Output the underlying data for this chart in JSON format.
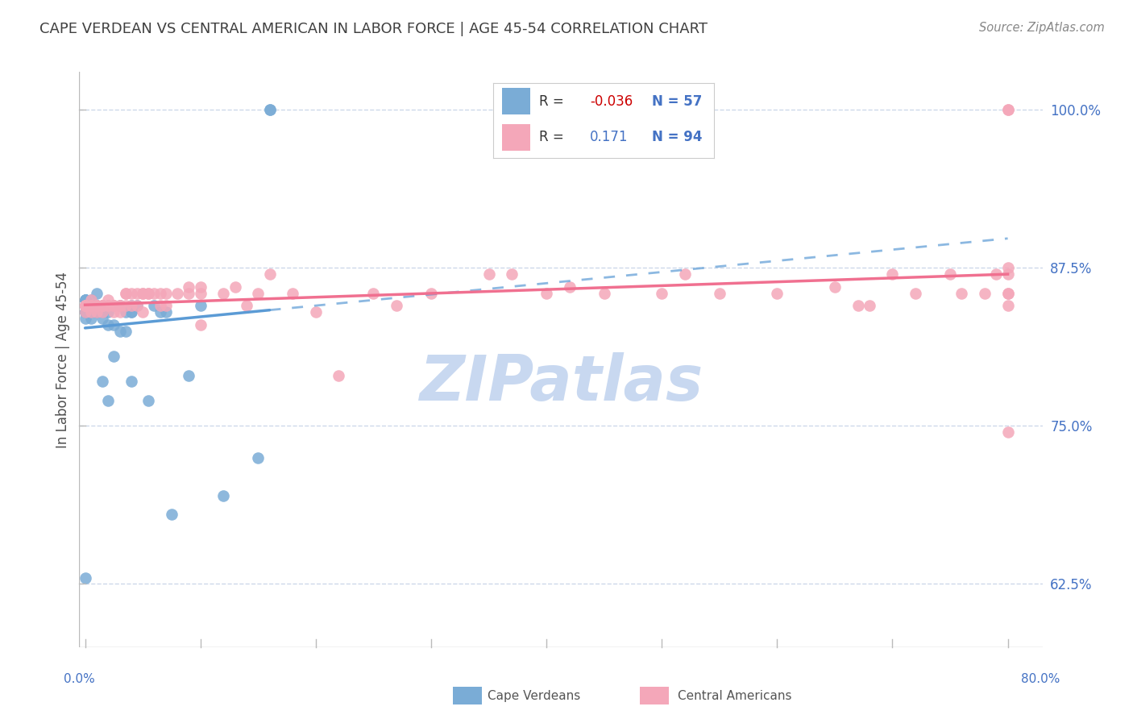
{
  "title": "CAPE VERDEAN VS CENTRAL AMERICAN IN LABOR FORCE | AGE 45-54 CORRELATION CHART",
  "source": "Source: ZipAtlas.com",
  "ylabel": "In Labor Force | Age 45-54",
  "ylim": [
    0.575,
    1.03
  ],
  "xlim": [
    -0.005,
    0.83
  ],
  "yticks": [
    0.625,
    0.75,
    0.875,
    1.0
  ],
  "ytick_labels": [
    "62.5%",
    "75.0%",
    "87.5%",
    "100.0%"
  ],
  "xtick_label_left": "0.0%",
  "xtick_label_right": "80.0%",
  "legend_cv_R": "-0.036",
  "legend_cv_N": "57",
  "legend_ca_R": "0.171",
  "legend_ca_N": "94",
  "blue_color": "#7aacd6",
  "pink_color": "#f4a7b9",
  "blue_line_color": "#5b9bd5",
  "pink_line_color": "#f07090",
  "axis_label_color": "#4472c4",
  "title_color": "#404040",
  "source_color": "#888888",
  "grid_color": "#c8d4e8",
  "watermark_color": "#c8d8f0",
  "cv_x": [
    0.0,
    0.0,
    0.0,
    0.0,
    0.0,
    0.0,
    0.0,
    0.0,
    0.0,
    0.0,
    0.0,
    0.0,
    0.0,
    0.0,
    0.005,
    0.005,
    0.005,
    0.005,
    0.005,
    0.005,
    0.005,
    0.01,
    0.01,
    0.01,
    0.01,
    0.01,
    0.01,
    0.01,
    0.015,
    0.015,
    0.015,
    0.015,
    0.02,
    0.02,
    0.02,
    0.025,
    0.025,
    0.03,
    0.03,
    0.035,
    0.035,
    0.04,
    0.04,
    0.04,
    0.04,
    0.045,
    0.055,
    0.06,
    0.065,
    0.07,
    0.075,
    0.09,
    0.1,
    0.12,
    0.15,
    0.16,
    0.16
  ],
  "cv_y": [
    0.84,
    0.845,
    0.845,
    0.845,
    0.845,
    0.845,
    0.85,
    0.85,
    0.85,
    0.85,
    0.84,
    0.84,
    0.835,
    0.63,
    0.84,
    0.84,
    0.845,
    0.845,
    0.85,
    0.84,
    0.835,
    0.855,
    0.845,
    0.845,
    0.84,
    0.84,
    0.84,
    0.845,
    0.845,
    0.84,
    0.835,
    0.785,
    0.84,
    0.83,
    0.77,
    0.83,
    0.805,
    0.845,
    0.825,
    0.84,
    0.825,
    0.845,
    0.84,
    0.84,
    0.785,
    0.845,
    0.77,
    0.845,
    0.84,
    0.84,
    0.68,
    0.79,
    0.845,
    0.695,
    0.725,
    1.0,
    1.0
  ],
  "ca_x": [
    0.0,
    0.0,
    0.0,
    0.0,
    0.0,
    0.0,
    0.0,
    0.0,
    0.005,
    0.005,
    0.005,
    0.005,
    0.005,
    0.005,
    0.01,
    0.01,
    0.01,
    0.01,
    0.01,
    0.015,
    0.015,
    0.015,
    0.015,
    0.015,
    0.02,
    0.02,
    0.02,
    0.025,
    0.025,
    0.025,
    0.025,
    0.03,
    0.03,
    0.03,
    0.035,
    0.035,
    0.035,
    0.04,
    0.04,
    0.045,
    0.045,
    0.05,
    0.05,
    0.05,
    0.055,
    0.055,
    0.06,
    0.065,
    0.065,
    0.07,
    0.07,
    0.08,
    0.09,
    0.09,
    0.1,
    0.1,
    0.1,
    0.12,
    0.13,
    0.14,
    0.15,
    0.16,
    0.18,
    0.2,
    0.22,
    0.25,
    0.27,
    0.3,
    0.35,
    0.37,
    0.4,
    0.42,
    0.45,
    0.5,
    0.52,
    0.55,
    0.6,
    0.65,
    0.67,
    0.68,
    0.7,
    0.72,
    0.75,
    0.76,
    0.78,
    0.79,
    0.8,
    0.8,
    0.8,
    0.8,
    0.8,
    0.8,
    0.8,
    0.8
  ],
  "ca_y": [
    0.845,
    0.845,
    0.845,
    0.845,
    0.845,
    0.845,
    0.845,
    0.84,
    0.845,
    0.845,
    0.845,
    0.85,
    0.845,
    0.84,
    0.84,
    0.845,
    0.845,
    0.845,
    0.845,
    0.845,
    0.845,
    0.845,
    0.845,
    0.84,
    0.85,
    0.845,
    0.845,
    0.845,
    0.845,
    0.845,
    0.84,
    0.845,
    0.845,
    0.84,
    0.855,
    0.855,
    0.845,
    0.855,
    0.845,
    0.855,
    0.845,
    0.855,
    0.855,
    0.84,
    0.855,
    0.855,
    0.855,
    0.855,
    0.845,
    0.855,
    0.845,
    0.855,
    0.86,
    0.855,
    0.86,
    0.855,
    0.83,
    0.855,
    0.86,
    0.845,
    0.855,
    0.87,
    0.855,
    0.84,
    0.79,
    0.855,
    0.845,
    0.855,
    0.87,
    0.87,
    0.855,
    0.86,
    0.855,
    0.855,
    0.87,
    0.855,
    0.855,
    0.86,
    0.845,
    0.845,
    0.87,
    0.855,
    0.87,
    0.855,
    0.855,
    0.87,
    0.855,
    0.87,
    0.855,
    0.875,
    1.0,
    1.0,
    0.845,
    0.745
  ]
}
